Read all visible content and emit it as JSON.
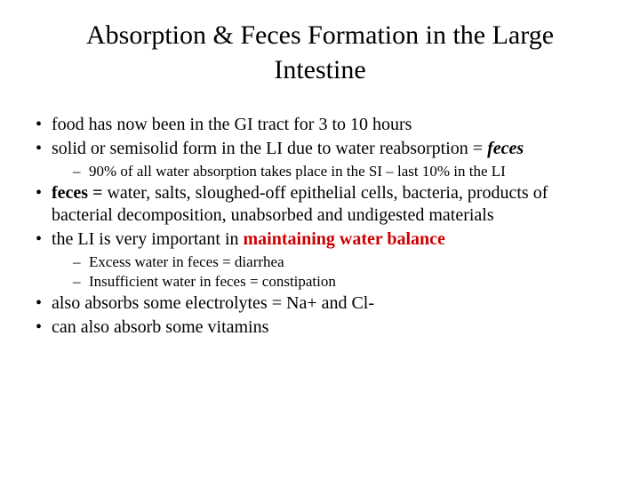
{
  "title": "Absorption & Feces Formation in the Large Intestine",
  "colors": {
    "text": "#000000",
    "background": "#ffffff",
    "highlight": "#cc0000"
  },
  "typography": {
    "font_family": "Times New Roman",
    "title_fontsize": 30,
    "body_fontsize": 20,
    "sub_fontsize": 17
  },
  "bullets": {
    "b1": "food has now been in the GI tract for 3 to 10 hours",
    "b2_pre": "solid or semisolid form in the LI due to water reabsorption = ",
    "b2_feces": "feces",
    "b2_sub1": "90% of all water absorption takes place in the SI – last 10% in the LI",
    "b3_pre": "feces = ",
    "b3_rest": "water, salts, sloughed-off epithelial cells, bacteria, products of bacterial decomposition, unabsorbed and undigested materials",
    "b4_pre": "the LI is very important in ",
    "b4_highlight": "maintaining water balance",
    "b4_sub1": "Excess water in feces = diarrhea",
    "b4_sub2": "Insufficient water in feces = constipation",
    "b5": "also absorbs some electrolytes = Na+ and  Cl-",
    "b6": "can also absorb some vitamins"
  }
}
